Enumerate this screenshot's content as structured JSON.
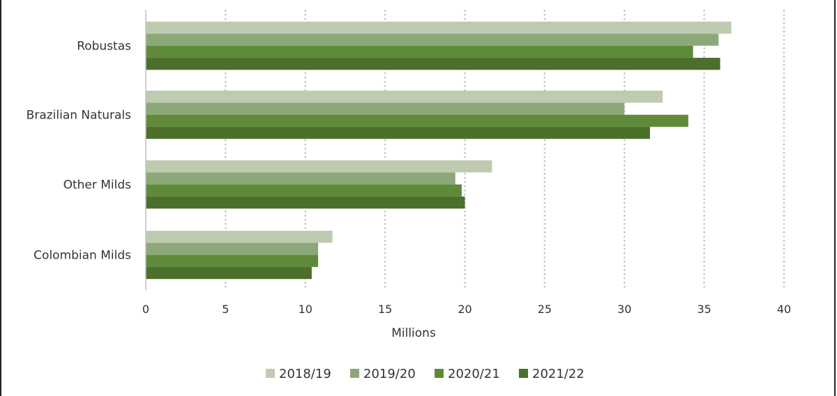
{
  "chart_data": {
    "type": "bar",
    "orientation": "horizontal",
    "categories": [
      "Robustas",
      "Brazilian Naturals",
      "Other Milds",
      "Colombian Milds"
    ],
    "series": [
      {
        "name": "2018/19",
        "color": "#bfcbb0",
        "values": [
          36.7,
          32.4,
          21.7,
          11.7
        ]
      },
      {
        "name": "2019/20",
        "color": "#8da878",
        "values": [
          35.9,
          30.0,
          19.4,
          10.8
        ]
      },
      {
        "name": "2020/21",
        "color": "#5e8a3a",
        "values": [
          34.3,
          34.0,
          19.8,
          10.8
        ]
      },
      {
        "name": "2021/22",
        "color": "#4c6f2c",
        "values": [
          36.0,
          31.6,
          20.0,
          10.4
        ]
      }
    ],
    "xlabel": "Millions",
    "ylabel": "",
    "xlim": [
      0,
      40
    ],
    "xticks": [
      "0",
      "5",
      "10",
      "15",
      "20",
      "25",
      "30",
      "35",
      "40"
    ],
    "grid": "vertical dotted",
    "legend_position": "bottom"
  }
}
